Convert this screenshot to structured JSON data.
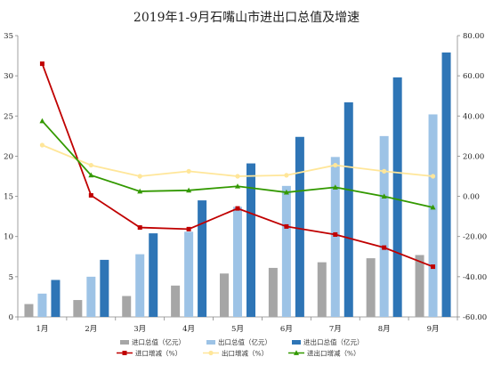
{
  "chart_data": {
    "type": "bar",
    "title": "2019年1-9月石嘴山市进出口总值及增速",
    "categories": [
      "1月",
      "2月",
      "3月",
      "4月",
      "5月",
      "6月",
      "7月",
      "8月",
      "9月"
    ],
    "bar_series": [
      {
        "name": "进口总值（亿元）",
        "color": "#a6a6a6",
        "values": [
          1.6,
          2.1,
          2.6,
          3.9,
          5.4,
          6.1,
          6.8,
          7.3,
          7.7
        ]
      },
      {
        "name": "出口总值（亿元）",
        "color": "#9dc3e6",
        "values": [
          2.9,
          5.0,
          7.8,
          10.6,
          13.7,
          16.3,
          19.9,
          22.5,
          25.2
        ]
      },
      {
        "name": "进出口总值（亿元）",
        "color": "#2e75b6",
        "values": [
          4.6,
          7.1,
          10.4,
          14.5,
          19.1,
          22.4,
          26.7,
          29.8,
          32.9
        ]
      }
    ],
    "line_series": [
      {
        "name": "进口增减（%）",
        "color": "#c00000",
        "marker": "square",
        "values": [
          66.0,
          0.5,
          -15.5,
          -16.3,
          -6.0,
          -15.0,
          -19.0,
          -25.5,
          -35.0
        ]
      },
      {
        "name": "出口增减（%）",
        "color": "#ffe699",
        "marker": "circle",
        "values": [
          25.5,
          15.5,
          10.0,
          12.5,
          10.0,
          10.5,
          15.5,
          12.5,
          10.0
        ]
      },
      {
        "name": "进出口增减（%）",
        "color": "#339900",
        "marker": "triangle",
        "values": [
          37.5,
          10.5,
          2.5,
          3.0,
          5.0,
          2.0,
          4.5,
          0.0,
          -5.5
        ]
      }
    ],
    "y_left": {
      "min": 0,
      "max": 35,
      "step": 5,
      "tick_labels": [
        "0",
        "5",
        "10",
        "15",
        "20",
        "25",
        "30",
        "35"
      ]
    },
    "y_right": {
      "min": -60,
      "max": 80,
      "step": 20,
      "tick_labels": [
        "-60.00",
        "-40.00",
        "-20.00",
        "0.00",
        "20.00",
        "40.00",
        "60.00",
        "80.00"
      ]
    },
    "grid": false,
    "legend_position": "bottom"
  }
}
